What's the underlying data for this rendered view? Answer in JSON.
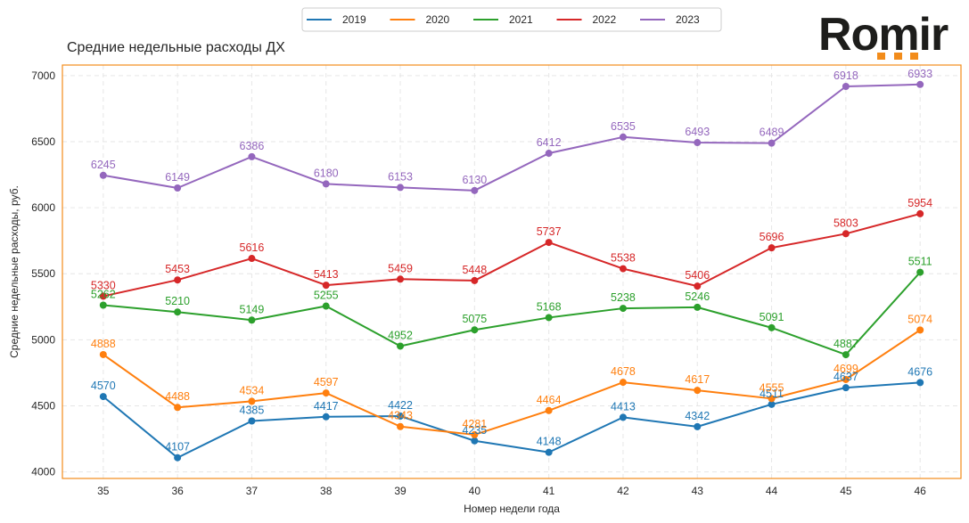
{
  "logo": {
    "text": "Romir",
    "accent": "#f28c1b"
  },
  "chart_data": {
    "type": "line",
    "title": "Средние недельные расходы ДХ",
    "xlabel": "Номер недели года",
    "ylabel": "Средние недельные расходы, руб.",
    "x": [
      35,
      36,
      37,
      38,
      39,
      40,
      41,
      42,
      43,
      44,
      45,
      46
    ],
    "ylim": [
      3950,
      7080
    ],
    "yticks": [
      4000,
      4500,
      5000,
      5500,
      6000,
      6500,
      7000
    ],
    "grid": true,
    "legend": "top-center",
    "frame_color": "#f28c1b",
    "series": [
      {
        "name": "2019",
        "color": "#1f77b4",
        "values": [
          4570,
          4107,
          4385,
          4417,
          4422,
          4235,
          4148,
          4413,
          4342,
          4511,
          4637,
          4676
        ]
      },
      {
        "name": "2020",
        "color": "#ff7f0e",
        "values": [
          4888,
          4488,
          4534,
          4597,
          4343,
          4281,
          4464,
          4678,
          4617,
          4555,
          4699,
          5074
        ]
      },
      {
        "name": "2021",
        "color": "#2ca02c",
        "values": [
          5262,
          5210,
          5149,
          5255,
          4952,
          5075,
          5168,
          5238,
          5246,
          5091,
          4887,
          5511
        ]
      },
      {
        "name": "2022",
        "color": "#d62728",
        "values": [
          5330,
          5453,
          5616,
          5413,
          5459,
          5448,
          5737,
          5538,
          5406,
          5696,
          5803,
          5954
        ]
      },
      {
        "name": "2023",
        "color": "#9467bd",
        "values": [
          6245,
          6149,
          6386,
          6180,
          6153,
          6130,
          6412,
          6535,
          6493,
          6489,
          6918,
          6933
        ]
      }
    ]
  }
}
